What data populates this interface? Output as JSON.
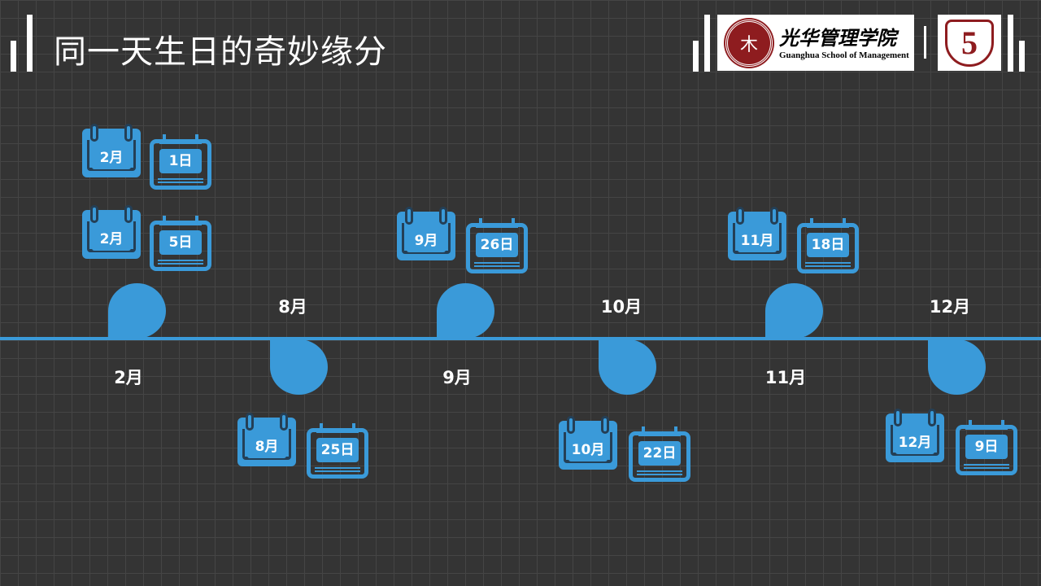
{
  "header": {
    "title": "同一天生日的奇妙缘分",
    "logo": {
      "cn": "光华管理学院",
      "en": "Guanghua School of Management",
      "seal_text": "PEKING UNIVERSITY 1898"
    },
    "badge": {
      "number": "5"
    }
  },
  "colors": {
    "accent": "#3a9ad9",
    "background": "#343434",
    "logo_red": "#8e1c1f"
  },
  "timeline": {
    "nodes": [
      {
        "label": "2月",
        "dir": "up"
      },
      {
        "label": "8月",
        "dir": "down"
      },
      {
        "label": "9月",
        "dir": "up"
      },
      {
        "label": "10月",
        "dir": "down"
      },
      {
        "label": "11月",
        "dir": "up"
      },
      {
        "label": "12月",
        "dir": "down"
      }
    ],
    "birthdays": [
      {
        "month": "2月",
        "day": "1日"
      },
      {
        "month": "2月",
        "day": "5日"
      },
      {
        "month": "8月",
        "day": "25日"
      },
      {
        "month": "9月",
        "day": "26日"
      },
      {
        "month": "10月",
        "day": "22日"
      },
      {
        "month": "11月",
        "day": "18日"
      },
      {
        "month": "12月",
        "day": "9日"
      }
    ]
  }
}
